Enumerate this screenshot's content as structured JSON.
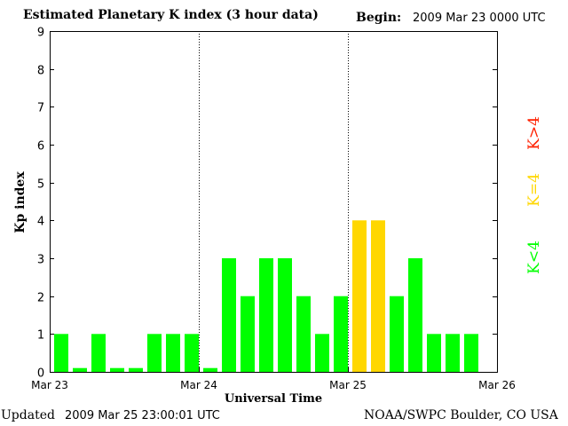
{
  "header": {
    "title": "Estimated Planetary K index (3 hour data)",
    "begin_label": "Begin:",
    "begin_value": "2009 Mar 23 0000 UTC"
  },
  "footer": {
    "updated_label": "Updated",
    "updated_value": "2009 Mar 25 23:00:01 UTC",
    "source": "NOAA/SWPC Boulder, CO USA"
  },
  "legend": {
    "items": [
      {
        "label": "K<4",
        "color": "#00ff00"
      },
      {
        "label": "K=4",
        "color": "#ffd700"
      },
      {
        "label": "K>4",
        "color": "#ff2000"
      }
    ]
  },
  "colors": {
    "low": "#00ff00",
    "storm": "#ffd700",
    "high": "#ff2000",
    "axis": "#000000"
  },
  "chart_data": {
    "type": "bar",
    "xlabel": "Universal Time",
    "ylabel": "Kp index",
    "ylim": [
      0,
      9
    ],
    "yticks": [
      0,
      1,
      2,
      3,
      4,
      5,
      6,
      7,
      8,
      9
    ],
    "xticks": [
      "Mar 23",
      "Mar 24",
      "Mar 25",
      "Mar 26"
    ],
    "day_dividers": [
      "Mar 24",
      "Mar 25"
    ],
    "bars_per_day": 8,
    "values": [
      1,
      0,
      1,
      0,
      0,
      1,
      1,
      1,
      0,
      3,
      2,
      3,
      3,
      2,
      1,
      2,
      4,
      4,
      2,
      3,
      1,
      1,
      1
    ]
  }
}
